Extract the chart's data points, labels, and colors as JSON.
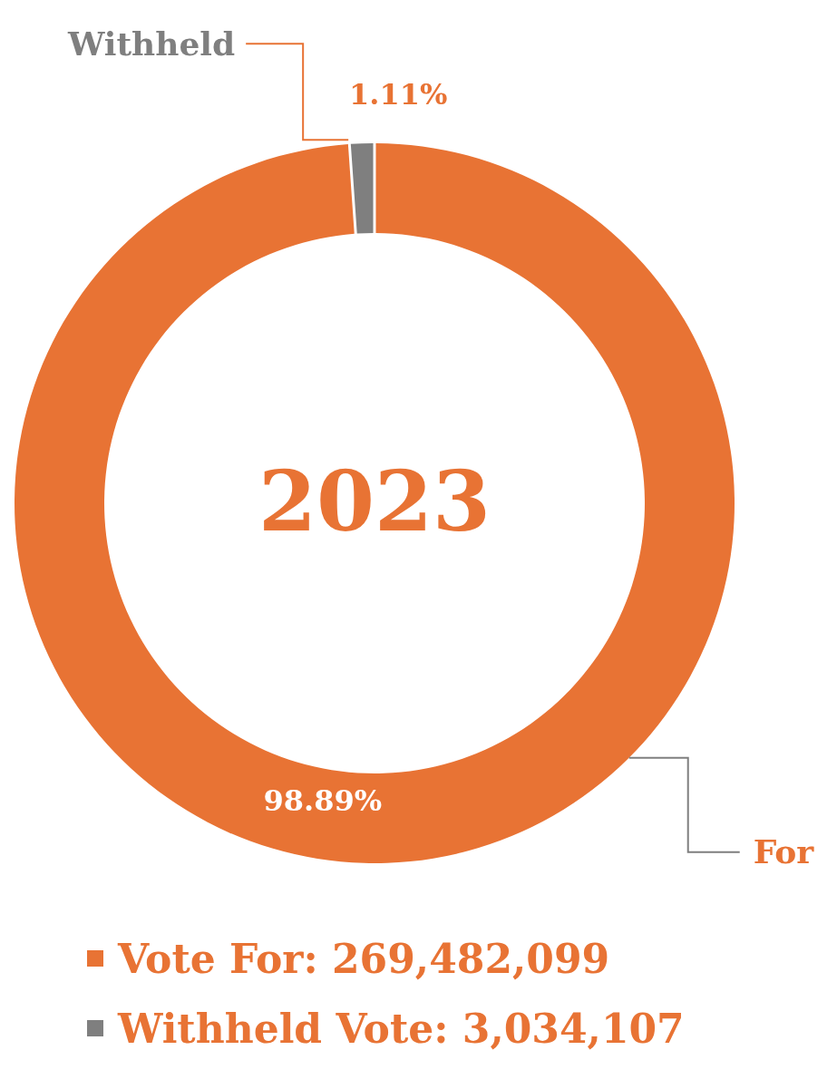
{
  "chart_data": {
    "type": "donut",
    "title": "2023",
    "categories": [
      "For",
      "Withheld"
    ],
    "values": [
      98.89,
      1.11
    ],
    "colors": [
      "#e87334",
      "#7f7f7f"
    ],
    "value_labels": [
      "98.89%",
      "1.11%"
    ],
    "annotations": [
      "Vote For: 269,482,099",
      "Withheld Vote: 3,034,107"
    ]
  }
}
